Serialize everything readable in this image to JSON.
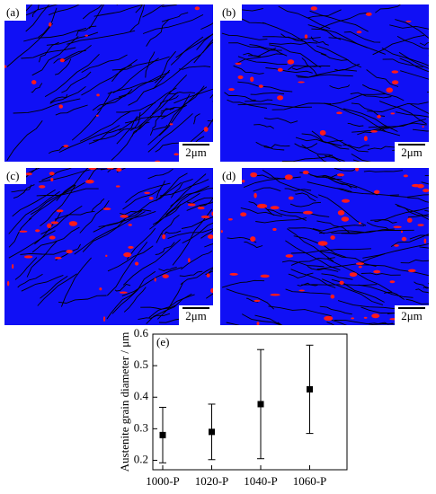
{
  "panels": [
    {
      "label": "(a)",
      "scale_bar": "2μm"
    },
    {
      "label": "(b)",
      "scale_bar": "2μm"
    },
    {
      "label": "(c)",
      "scale_bar": "2μm"
    },
    {
      "label": "(d)",
      "scale_bar": "2μm"
    }
  ],
  "chart_data": {
    "type": "scatter",
    "annotation": "(e)",
    "y_label": "Austenite grain diameter / μm",
    "categories": [
      "1000-P",
      "1020-P",
      "1040-P",
      "1060-P"
    ],
    "values": [
      0.28,
      0.29,
      0.378,
      0.425
    ],
    "errors": [
      0.088,
      0.088,
      0.173,
      0.14
    ],
    "color": "#000000",
    "ylim": [
      0.17,
      0.6
    ],
    "yticks": [
      0.2,
      0.3,
      0.4,
      0.5,
      0.6
    ]
  }
}
